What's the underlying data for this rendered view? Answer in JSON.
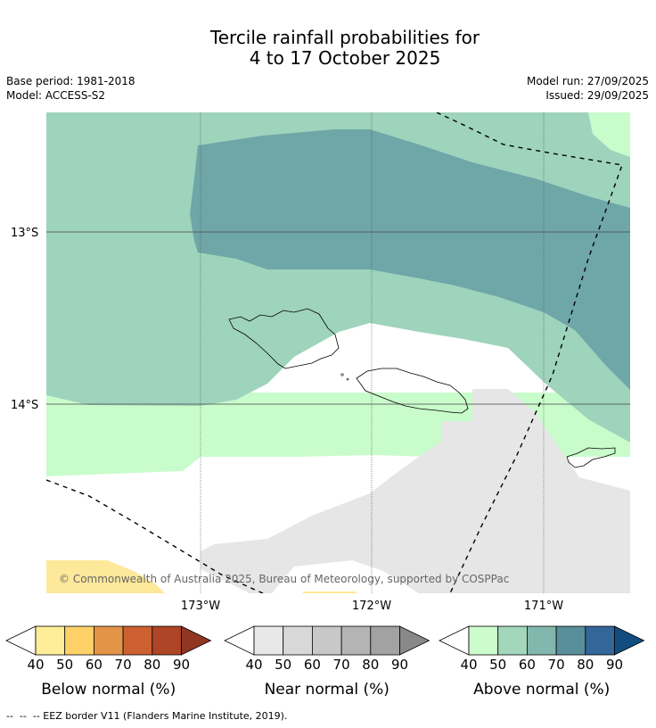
{
  "title": {
    "line1": "Tercile rainfall probabilities for",
    "line2": "4 to 17 October 2025"
  },
  "meta": {
    "base_period": "Base period: 1981-2018",
    "model": "Model: ACCESS-S2",
    "model_run": "Model run: 27/09/2025",
    "issued": "Issued: 29/09/2025"
  },
  "map": {
    "lat_labels": [
      "13°S",
      "14°S"
    ],
    "lon_labels": [
      "173°W",
      "172°W",
      "171°W"
    ],
    "copyright": "© Commonwealth of Australia 2025, Bureau of Meteorology, supported by COSPPac",
    "region_colors": {
      "above_50": "#9ed3bc",
      "above_70": "#6fa6a8",
      "above_40": "#c9fccb",
      "near_40": "#e6e6e6",
      "below_40": "#fee89a",
      "normal": "#ffffff"
    }
  },
  "legends": [
    {
      "label": "Below normal (%)",
      "ticks": [
        "40",
        "50",
        "60",
        "70",
        "80",
        "90"
      ],
      "colors": [
        "#ffee99",
        "#fdd068",
        "#e29447",
        "#cd6031",
        "#ad4526",
        "#913622"
      ]
    },
    {
      "label": "Near normal (%)",
      "ticks": [
        "40",
        "50",
        "60",
        "70",
        "80",
        "90"
      ],
      "colors": [
        "#e8e8e8",
        "#d8d8d8",
        "#c8c8c8",
        "#b4b4b4",
        "#a2a2a2",
        "#888888"
      ]
    },
    {
      "label": "Above normal (%)",
      "ticks": [
        "40",
        "50",
        "60",
        "70",
        "80",
        "90"
      ],
      "colors": [
        "#ccfccc",
        "#a3d7bc",
        "#82b7ad",
        "#588f9b",
        "#336699",
        "#124d80"
      ]
    }
  ],
  "footer": {
    "eez_note": "--  --  -- EEZ border V11 (Flanders Marine Institute, 2019)."
  }
}
